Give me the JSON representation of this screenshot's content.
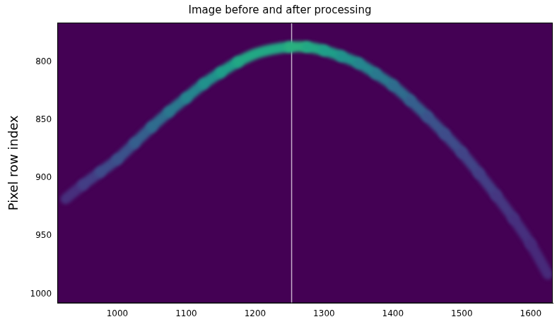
{
  "chart_data": {
    "type": "scatter",
    "title": "Image before and after processing",
    "y_label": "Pixel row index",
    "xlim": [
      913,
      1632
    ],
    "ylim": [
      1008,
      766
    ],
    "xticks": [
      1000,
      1100,
      1200,
      1300,
      1400,
      1500,
      1600
    ],
    "yticks": [
      800,
      850,
      900,
      950,
      1000
    ],
    "grid": false,
    "series": [
      {
        "type": "line",
        "x": [
          925,
          950,
          975,
          1000,
          1025,
          1050,
          1075,
          1100,
          1125,
          1150,
          1175,
          1200,
          1225,
          1250,
          1275,
          1300,
          1325,
          1350,
          1375,
          1400,
          1425,
          1450,
          1475,
          1500,
          1525,
          1550,
          1575,
          1600,
          1625
        ],
        "values": [
          918,
          906,
          895,
          884,
          870,
          856,
          843,
          831,
          819,
          809,
          800,
          793,
          789,
          787,
          787,
          790,
          795,
          801,
          810,
          820,
          833,
          847,
          862,
          878,
          896,
          915,
          935,
          957,
          983
        ],
        "colors": [
          "#472f7d",
          "#433e85",
          "#3e4c8a",
          "#3b528b",
          "#355f8d",
          "#2f6c8e",
          "#2a788e",
          "#25858e",
          "#21918c",
          "#1f9e89",
          "#22a884",
          "#22a884",
          "#22a884",
          "#2ab07f",
          "#22a884",
          "#1f9e89",
          "#21918c",
          "#25858e",
          "#2a788e",
          "#2f6c8e",
          "#355f8d",
          "#3b528b",
          "#3e4c8a",
          "#414487",
          "#433e85",
          "#453781",
          "#46307e",
          "#472a7a",
          "#482475"
        ]
      },
      {
        "type": "line",
        "x": [
          1253,
          1253
        ],
        "values": [
          766,
          1008
        ],
        "color": "#c4aecb"
      }
    ]
  }
}
